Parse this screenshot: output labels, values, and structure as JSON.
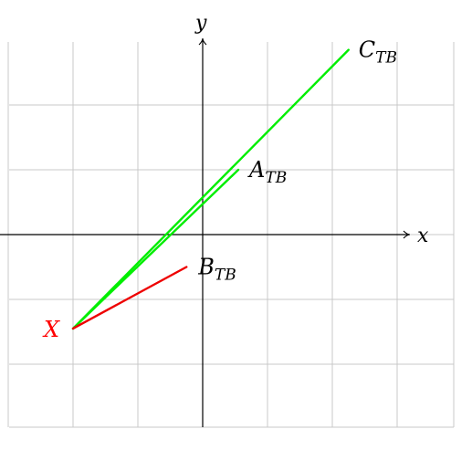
{
  "axes": {
    "x_label": "x",
    "y_label": "y",
    "x_range": [
      -3,
      4
    ],
    "y_range": [
      -3,
      3
    ]
  },
  "grid": true,
  "colors": {
    "grid": "#c8c8c8",
    "axis": "#000000",
    "point_X": "#ff0000",
    "segment_green": "#00ee00",
    "segment_red": "#ee0000"
  },
  "points": {
    "X": {
      "label": "X",
      "x": -2,
      "y": -1.45
    },
    "A": {
      "label": "A",
      "sub": "TB",
      "x": 0.55,
      "y": 1.0
    },
    "B": {
      "label": "B",
      "sub": "TB",
      "x": -0.25,
      "y": -0.5
    },
    "C": {
      "label": "C",
      "sub": "TB",
      "x": 2.25,
      "y": 2.85
    }
  }
}
